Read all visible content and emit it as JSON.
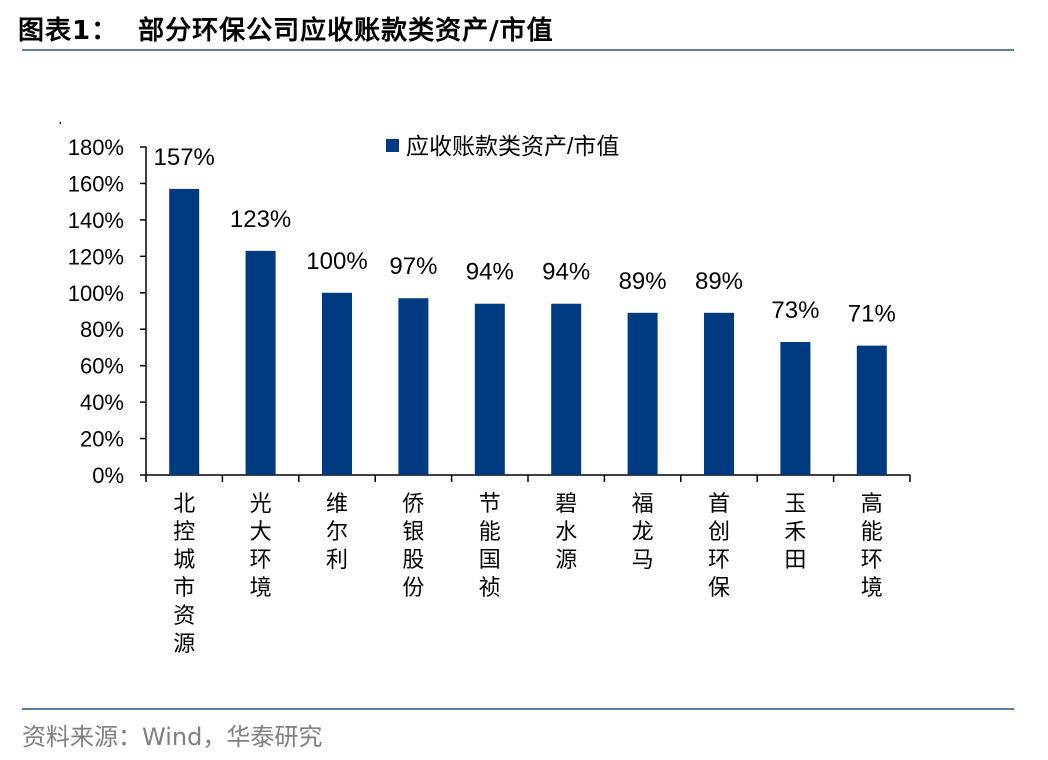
{
  "header": {
    "title_prefix": "图表1：",
    "title_main": "部分环保公司应收账款类资产/市值"
  },
  "footer": {
    "source": "资料来源：Wind，华泰研究"
  },
  "chart_data": {
    "type": "bar",
    "title": "",
    "xlabel": "",
    "ylabel": "",
    "ylim": [
      0,
      180
    ],
    "y_ticks": [
      "0%",
      "20%",
      "40%",
      "60%",
      "80%",
      "100%",
      "120%",
      "140%",
      "160%",
      "180%"
    ],
    "categories": [
      "北控城市资源",
      "光大环境",
      "维尔利",
      "侨银股份",
      "节能国祯",
      "碧水源",
      "福龙马",
      "首创环保",
      "玉禾田",
      "高能环境"
    ],
    "series": [
      {
        "name": "应收账款类资产/市值",
        "values": [
          157,
          123,
          100,
          97,
          94,
          94,
          89,
          89,
          73,
          71
        ],
        "labels": [
          "157%",
          "123%",
          "100%",
          "97%",
          "94%",
          "94%",
          "89%",
          "89%",
          "73%",
          "71%"
        ],
        "color": "#003a80"
      }
    ],
    "legend": "top-center",
    "grid": false,
    "axis_mark": "."
  }
}
